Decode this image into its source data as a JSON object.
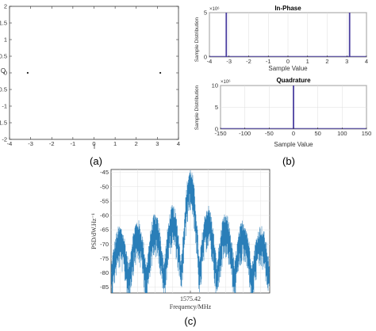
{
  "captions": {
    "a": "(a)",
    "b": "(b)",
    "c": "(c)"
  },
  "chart_data": [
    {
      "id": "a",
      "type": "scatter",
      "xlabel": "I",
      "ylabel": "Q",
      "xlim": [
        -4,
        4
      ],
      "ylim": [
        -2,
        2
      ],
      "xticks": [
        -4,
        -3,
        -2,
        -1,
        0,
        1,
        2,
        3,
        4
      ],
      "yticks": [
        -2,
        -1.5,
        -1,
        -0.5,
        0,
        0.5,
        1,
        1.5,
        2
      ],
      "points": [
        {
          "x": -3.14,
          "y": 0
        },
        {
          "x": 3.14,
          "y": 0
        }
      ],
      "color": "#222222",
      "grid": false
    },
    {
      "id": "b-top",
      "type": "bar",
      "title": "In-Phase",
      "xlabel": "Sample Value",
      "ylabel": "Sample Distribution",
      "xlim": [
        -4,
        4
      ],
      "ylim": [
        0,
        5
      ],
      "xticks": [
        -4,
        -3,
        -2,
        -1,
        0,
        1,
        2,
        3,
        4
      ],
      "yticks": [
        0,
        5
      ],
      "yexponent": "×10⁶",
      "bars": [
        {
          "x": -3.14,
          "value": 5
        },
        {
          "x": 3.14,
          "value": 5
        }
      ],
      "color": "#4b3fa0",
      "grid": true
    },
    {
      "id": "b-bottom",
      "type": "bar",
      "title": "Quadrature",
      "xlabel": "Sample Value",
      "ylabel": "Sample Distribution",
      "xlim": [
        -150,
        150
      ],
      "ylim": [
        0,
        10
      ],
      "xticks": [
        -150,
        -100,
        -50,
        0,
        50,
        100,
        150
      ],
      "yticks": [
        0,
        5,
        10
      ],
      "yexponent": "×10⁶",
      "bars": [
        {
          "x": 0,
          "value": 10
        }
      ],
      "color": "#4b3fa0",
      "grid": true
    },
    {
      "id": "c",
      "type": "line",
      "xlabel": "Frequency/MHz",
      "ylabel": "PSD/dW.Hz⁻¹",
      "ylim": [
        -87,
        -44
      ],
      "yticks": [
        -85,
        -80,
        -75,
        -70,
        -65,
        -60,
        -55,
        -50,
        -45
      ],
      "xtick_label": "1575.42",
      "center_frequency": 1575.42,
      "lobes": [
        {
          "offset": -4,
          "peak": -66
        },
        {
          "offset": -3,
          "peak": -64
        },
        {
          "offset": -2,
          "peak": -62
        },
        {
          "offset": -1,
          "peak": -59
        },
        {
          "offset": 0,
          "peak": -46
        },
        {
          "offset": 1,
          "peak": -59
        },
        {
          "offset": 2,
          "peak": -62
        },
        {
          "offset": 3,
          "peak": -64
        },
        {
          "offset": 4,
          "peak": -66
        }
      ],
      "noise_floor": -79,
      "color": "#1f77b4",
      "grid": true
    }
  ]
}
